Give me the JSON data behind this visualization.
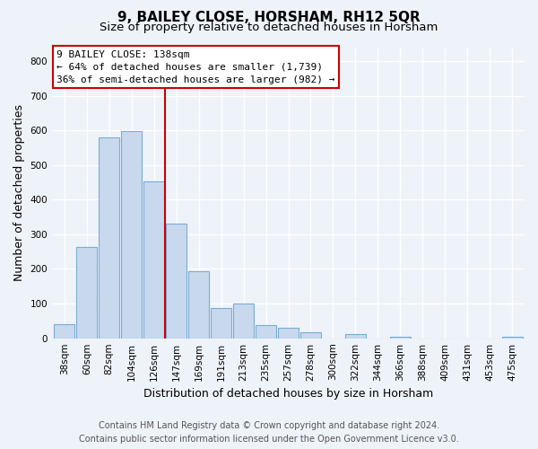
{
  "title": "9, BAILEY CLOSE, HORSHAM, RH12 5QR",
  "subtitle": "Size of property relative to detached houses in Horsham",
  "xlabel": "Distribution of detached houses by size in Horsham",
  "ylabel": "Number of detached properties",
  "bar_labels": [
    "38sqm",
    "60sqm",
    "82sqm",
    "104sqm",
    "126sqm",
    "147sqm",
    "169sqm",
    "191sqm",
    "213sqm",
    "235sqm",
    "257sqm",
    "278sqm",
    "300sqm",
    "322sqm",
    "344sqm",
    "366sqm",
    "388sqm",
    "409sqm",
    "431sqm",
    "453sqm",
    "475sqm"
  ],
  "bar_values": [
    40,
    263,
    580,
    597,
    452,
    330,
    194,
    86,
    100,
    38,
    31,
    18,
    0,
    12,
    0,
    5,
    0,
    0,
    0,
    0,
    5
  ],
  "bar_color": "#c8d9ee",
  "bar_edge_color": "#7aadd4",
  "vline_x": 4.5,
  "vline_color": "#cc0000",
  "ylim": [
    0,
    840
  ],
  "yticks": [
    0,
    100,
    200,
    300,
    400,
    500,
    600,
    700,
    800
  ],
  "annotation_title": "9 BAILEY CLOSE: 138sqm",
  "annotation_line1": "← 64% of detached houses are smaller (1,739)",
  "annotation_line2": "36% of semi-detached houses are larger (982) →",
  "footer_line1": "Contains HM Land Registry data © Crown copyright and database right 2024.",
  "footer_line2": "Contains public sector information licensed under the Open Government Licence v3.0.",
  "background_color": "#eef2f9",
  "grid_color": "#d8dde8",
  "title_fontsize": 11,
  "subtitle_fontsize": 9.5,
  "axis_label_fontsize": 9,
  "tick_fontsize": 7.5,
  "footer_fontsize": 7,
  "annot_fontsize": 8
}
